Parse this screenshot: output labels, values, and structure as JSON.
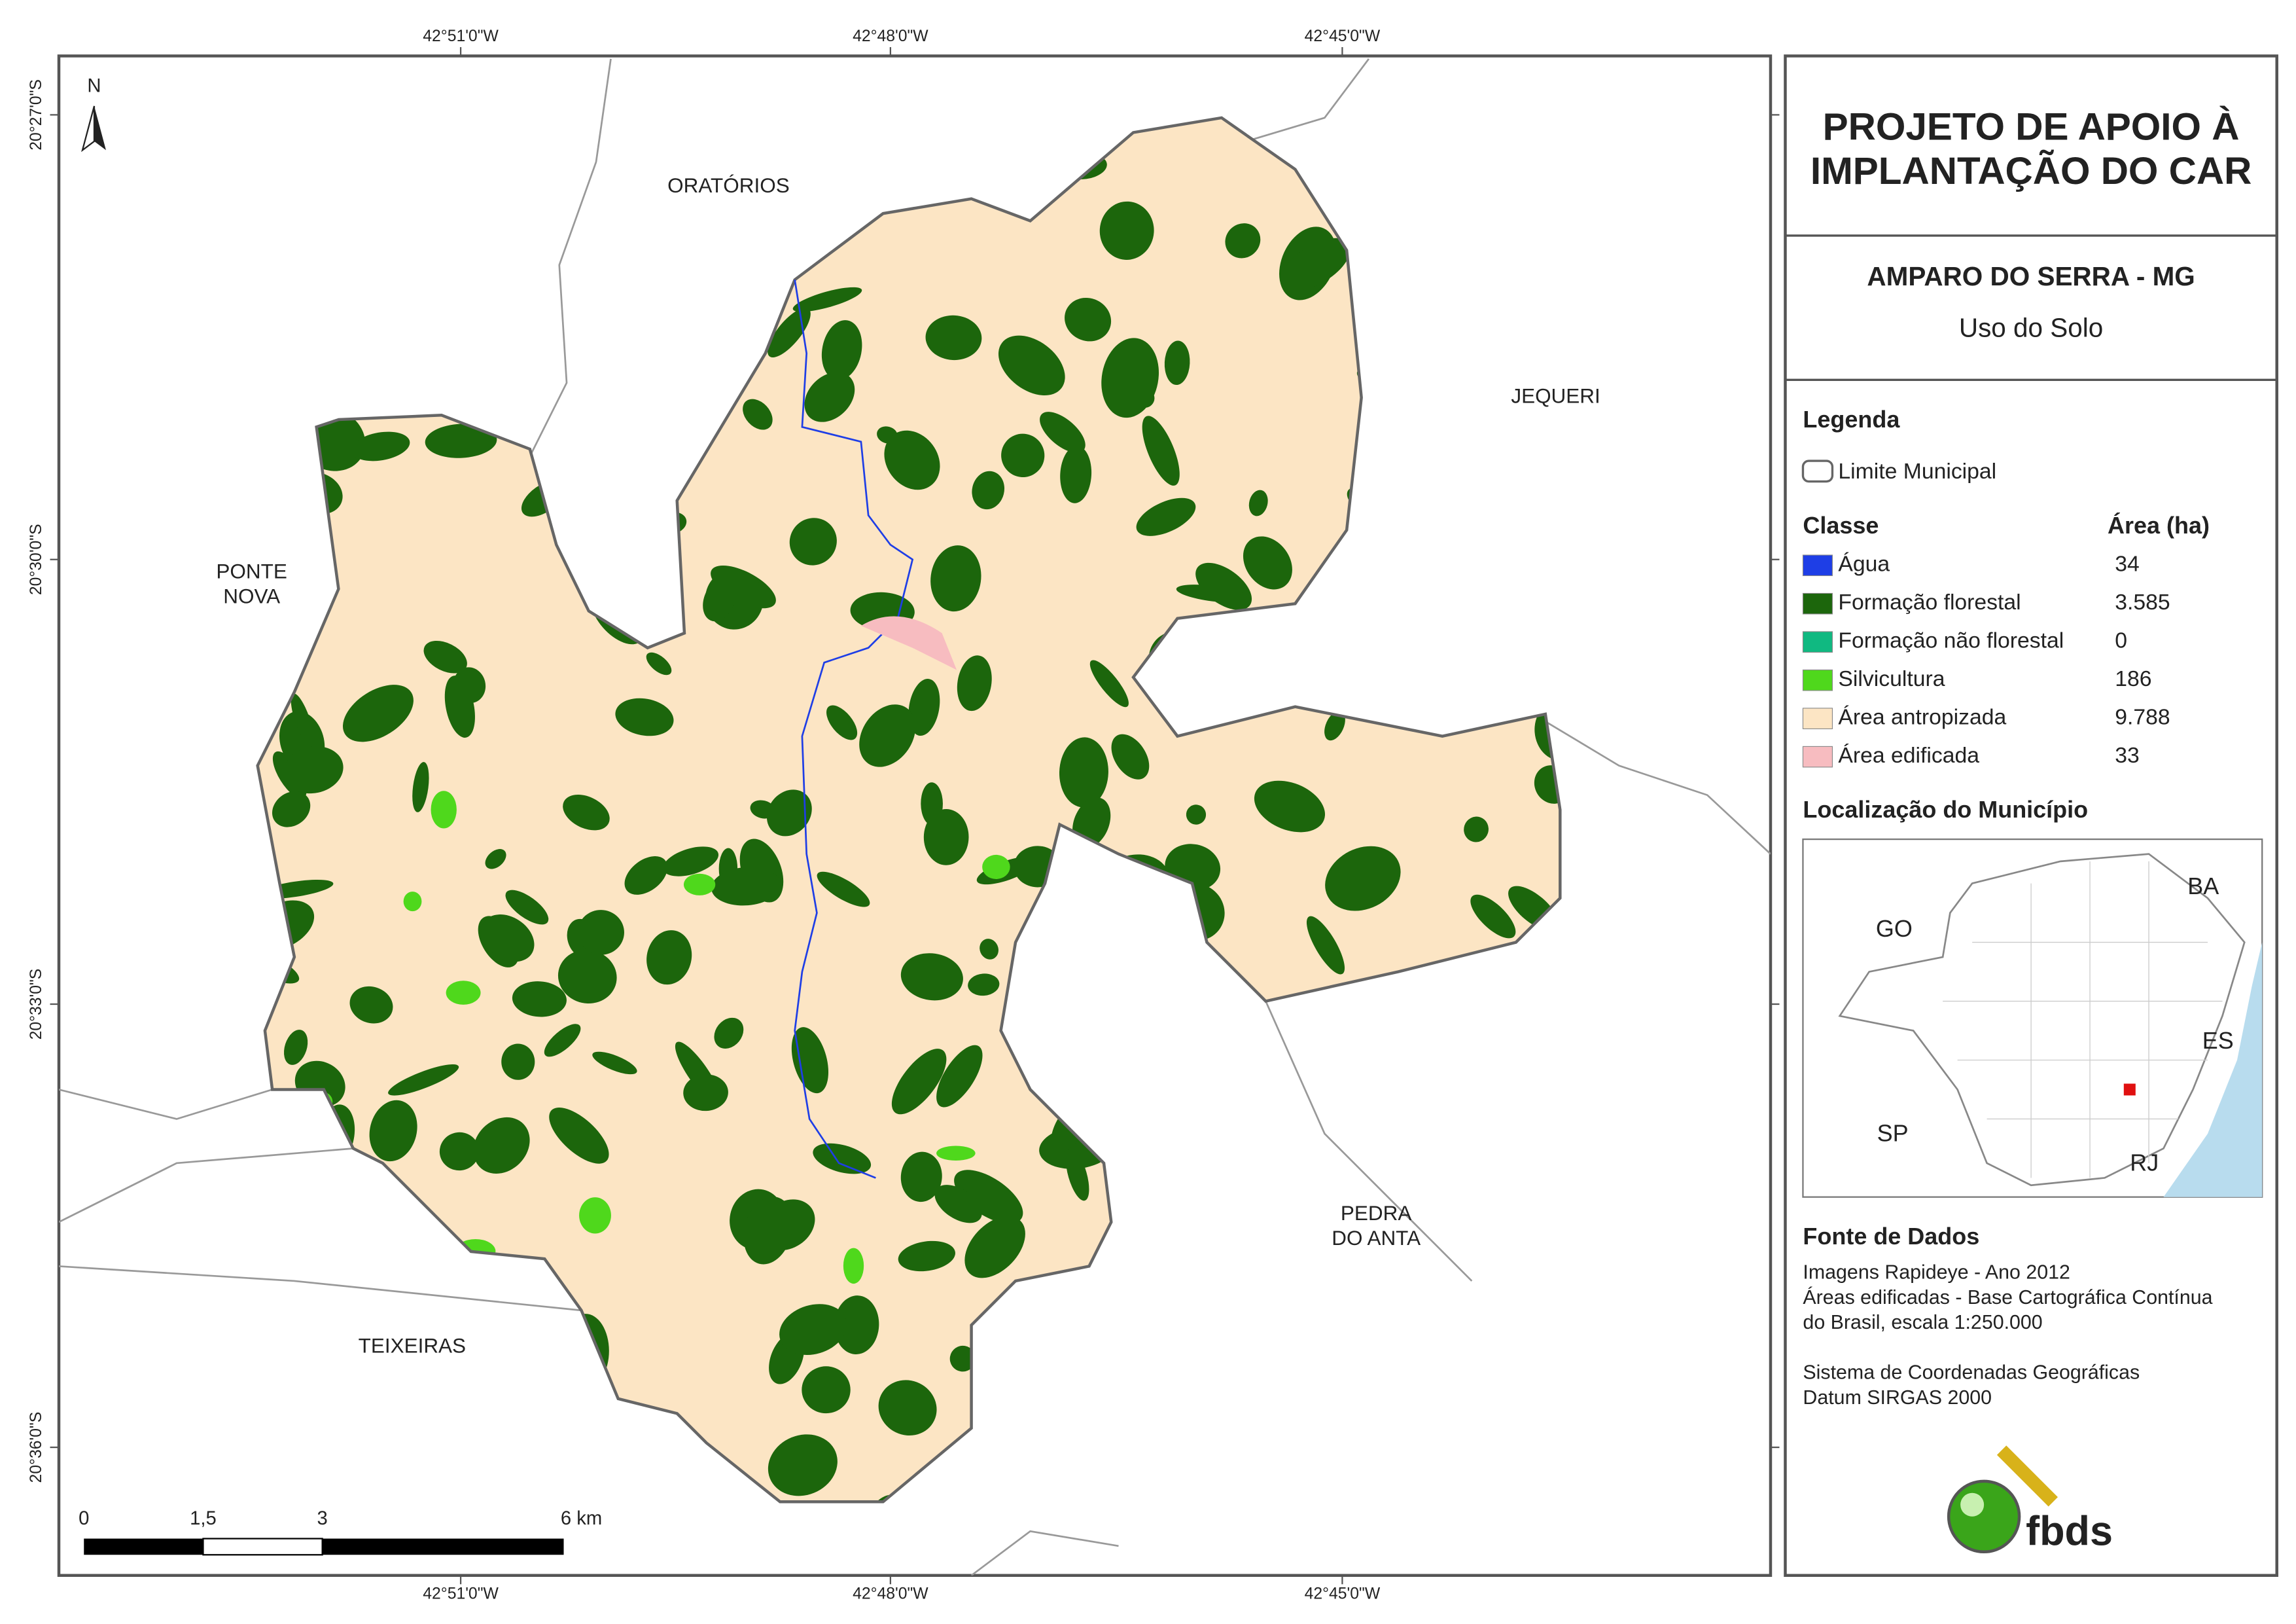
{
  "title": [
    "PROJETO DE APOIO À",
    "IMPLANTAÇÃO DO CAR"
  ],
  "municipality": "AMPARO DO SERRA - MG",
  "theme": "Uso do Solo",
  "legend": {
    "title": "Legenda",
    "boundary": "Limite Municipal",
    "class_header": "Classe",
    "area_header": "Área (ha)",
    "classes": [
      {
        "name": "Água",
        "area": "34",
        "color": "#1e3ee6"
      },
      {
        "name": "Formação florestal",
        "area": "3.585",
        "color": "#1c660c"
      },
      {
        "name": "Formação não florestal",
        "area": "0",
        "color": "#10b981"
      },
      {
        "name": "Silvicultura",
        "area": "186",
        "color": "#4fd81c"
      },
      {
        "name": "Área antropizada",
        "area": "9.788",
        "color": "#fce5c4"
      },
      {
        "name": "Área edificada",
        "area": "33",
        "color": "#f7bcc0"
      }
    ]
  },
  "location": {
    "title": "Localização do Município",
    "labels": [
      "GO",
      "BA",
      "ES",
      "SP",
      "RJ"
    ]
  },
  "sources": {
    "title": "Fonte de Dados",
    "lines": [
      "Imagens Rapideye - Ano 2012",
      "Áreas edificadas - Base Cartográfica Contínua",
      "do Brasil, escala 1:250.000",
      "Sistema de Coordenadas Geográficas",
      "Datum SIRGAS 2000"
    ]
  },
  "logo": "fbds",
  "map": {
    "north": "N",
    "top_ticks": [
      "42°51'0\"W",
      "42°48'0\"W",
      "42°45'0\"W"
    ],
    "bottom_ticks": [
      "42°51'0\"W",
      "42°48'0\"W",
      "42°45'0\"W"
    ],
    "left_ticks": [
      "20°27'0\"S",
      "20°30'0\"S",
      "20°33'0\"S",
      "20°36'0\"S"
    ],
    "places": [
      [
        "ORATÓRIOS"
      ],
      [
        "JEQUERI"
      ],
      [
        "PONTE",
        "NOVA"
      ],
      [
        "PEDRA",
        "DO ANTA"
      ],
      [
        "TEIXEIRAS"
      ]
    ],
    "scale": [
      "0",
      "1,5",
      "3",
      "6 km"
    ]
  }
}
